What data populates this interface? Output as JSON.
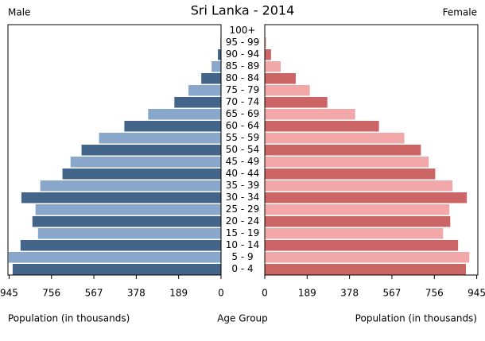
{
  "chart_data": {
    "type": "population-pyramid",
    "title": "Sri Lanka - 2014",
    "categories": [
      "100+",
      "95 - 99",
      "90 - 94",
      "85 - 89",
      "80 - 84",
      "75 - 79",
      "70 - 74",
      "65 - 69",
      "60 - 64",
      "55 - 59",
      "50 - 54",
      "45 - 49",
      "40 - 44",
      "35 - 39",
      "30 - 34",
      "25 - 29",
      "20 - 24",
      "15 - 19",
      "10 - 14",
      "5 - 9",
      "0 - 4"
    ],
    "category_label": "Age Group",
    "xlabel": "Population (in thousands)",
    "series": [
      {
        "name": "Male",
        "colors": [
          "#44658a",
          "#89a7cb"
        ],
        "values": [
          1,
          3,
          14,
          42,
          88,
          145,
          208,
          325,
          431,
          544,
          622,
          671,
          707,
          806,
          890,
          827,
          841,
          816,
          894,
          947,
          929
        ]
      },
      {
        "name": "Female",
        "colors": [
          "#cc6666",
          "#f2a8a8"
        ],
        "values": [
          2,
          6,
          28,
          71,
          138,
          201,
          279,
          403,
          509,
          622,
          696,
          731,
          760,
          837,
          901,
          823,
          827,
          795,
          862,
          912,
          897
        ]
      }
    ],
    "xlim": [
      0,
      950
    ],
    "xticks": [
      945,
      756,
      567,
      378,
      189,
      0
    ]
  }
}
